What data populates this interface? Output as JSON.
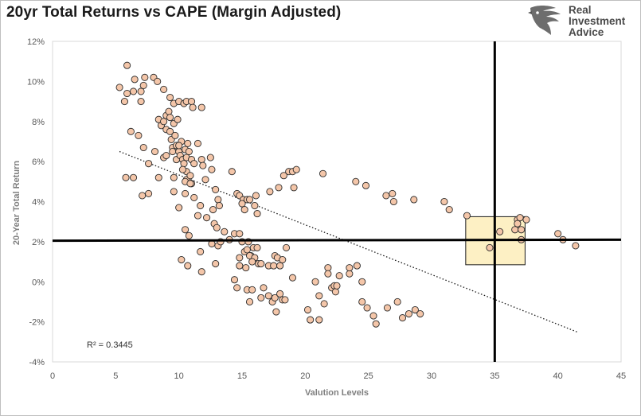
{
  "chart_data": {
    "type": "scatter",
    "title": "20yr Total Returns vs CAPE (Margin Adjusted)",
    "xlabel": "Valution Levels",
    "ylabel": "20-Year Total Return",
    "xlim": [
      0,
      45
    ],
    "ylim": [
      -4,
      12
    ],
    "x_ticks": [
      "0",
      "5",
      "10",
      "15",
      "20",
      "25",
      "30",
      "35",
      "40",
      "45"
    ],
    "y_ticks": [
      "-4%",
      "-2%",
      "0%",
      "2%",
      "4%",
      "6%",
      "8%",
      "10%",
      "12%"
    ],
    "grid": false,
    "r_squared_label": "R² = 0.3445",
    "trendline": {
      "style": "dotted",
      "x": [
        5.3,
        41.5
      ],
      "y": [
        6.5,
        -2.5
      ]
    },
    "reference_lines": {
      "vertical_x": 35,
      "horizontal_y": [
        2.05,
        2.1
      ]
    },
    "highlight_box": {
      "x": [
        32.7,
        37.4
      ],
      "y": [
        0.85,
        3.25
      ],
      "fill": "#fdf0c4"
    },
    "marker_color": "#f4c6a9",
    "points": [
      [
        5.3,
        9.7
      ],
      [
        5.9,
        10.8
      ],
      [
        5.9,
        9.4
      ],
      [
        5.7,
        9.0
      ],
      [
        6.5,
        10.1
      ],
      [
        6.4,
        9.5
      ],
      [
        7.0,
        9.5
      ],
      [
        7.0,
        9.0
      ],
      [
        7.2,
        9.8
      ],
      [
        7.3,
        10.2
      ],
      [
        8.0,
        10.2
      ],
      [
        8.3,
        10.0
      ],
      [
        8.8,
        9.6
      ],
      [
        9.3,
        9.2
      ],
      [
        9.6,
        8.9
      ],
      [
        10.0,
        9.0
      ],
      [
        10.4,
        8.9
      ],
      [
        10.6,
        9.0
      ],
      [
        11.0,
        9.0
      ],
      [
        11.1,
        8.7
      ],
      [
        11.8,
        8.7
      ],
      [
        6.2,
        7.5
      ],
      [
        6.8,
        7.3
      ],
      [
        7.2,
        6.7
      ],
      [
        7.6,
        5.9
      ],
      [
        8.1,
        6.5
      ],
      [
        8.4,
        8.1
      ],
      [
        8.6,
        7.8
      ],
      [
        8.8,
        8.0
      ],
      [
        8.8,
        6.2
      ],
      [
        9.0,
        8.3
      ],
      [
        9.0,
        7.6
      ],
      [
        9.2,
        8.5
      ],
      [
        9.3,
        8.2
      ],
      [
        9.3,
        7.5
      ],
      [
        9.4,
        7.1
      ],
      [
        9.5,
        6.7
      ],
      [
        9.5,
        6.5
      ],
      [
        9.6,
        7.9
      ],
      [
        9.7,
        7.3
      ],
      [
        9.8,
        6.8
      ],
      [
        9.8,
        6.1
      ],
      [
        9.9,
        8.1
      ],
      [
        10.0,
        6.5
      ],
      [
        10.1,
        6.3
      ],
      [
        10.2,
        7.0
      ],
      [
        10.3,
        6.1
      ],
      [
        10.4,
        5.9
      ],
      [
        10.5,
        6.6
      ],
      [
        10.6,
        6.2
      ],
      [
        10.6,
        5.5
      ],
      [
        10.7,
        6.9
      ],
      [
        10.8,
        6.5
      ],
      [
        11.0,
        6.1
      ],
      [
        11.2,
        5.9
      ],
      [
        11.5,
        6.9
      ],
      [
        11.8,
        6.1
      ],
      [
        11.9,
        5.8
      ],
      [
        12.5,
        6.2
      ],
      [
        9.0,
        6.3
      ],
      [
        10.0,
        6.8
      ],
      [
        10.3,
        5.6
      ],
      [
        10.6,
        5.1
      ],
      [
        10.9,
        5.3
      ],
      [
        11.0,
        4.9
      ],
      [
        10.5,
        4.4
      ],
      [
        10.5,
        5.0
      ],
      [
        9.6,
        5.2
      ],
      [
        8.4,
        5.2
      ],
      [
        7.6,
        4.4
      ],
      [
        7.1,
        4.3
      ],
      [
        6.4,
        5.2
      ],
      [
        5.8,
        5.2
      ],
      [
        9.6,
        4.5
      ],
      [
        10.0,
        3.7
      ],
      [
        10.9,
        4.9
      ],
      [
        11.2,
        4.2
      ],
      [
        11.5,
        3.3
      ],
      [
        11.7,
        3.8
      ],
      [
        12.2,
        3.2
      ],
      [
        12.1,
        5.1
      ],
      [
        12.6,
        5.6
      ],
      [
        12.9,
        4.6
      ],
      [
        13.1,
        4.1
      ],
      [
        12.7,
        3.6
      ],
      [
        13.2,
        3.8
      ],
      [
        12.8,
        2.9
      ],
      [
        13.0,
        2.7
      ],
      [
        12.6,
        1.9
      ],
      [
        13.1,
        1.8
      ],
      [
        13.6,
        2.5
      ],
      [
        14.0,
        2.1
      ],
      [
        13.3,
        2.0
      ],
      [
        10.5,
        2.6
      ],
      [
        10.8,
        2.3
      ],
      [
        11.7,
        1.5
      ],
      [
        10.2,
        1.1
      ],
      [
        10.7,
        0.8
      ],
      [
        11.8,
        0.5
      ],
      [
        12.9,
        0.9
      ],
      [
        14.2,
        5.5
      ],
      [
        14.6,
        4.4
      ],
      [
        14.8,
        4.3
      ],
      [
        15.1,
        4.1
      ],
      [
        15.4,
        4.1
      ],
      [
        15.0,
        3.9
      ],
      [
        15.2,
        3.6
      ],
      [
        15.6,
        4.1
      ],
      [
        16.0,
        3.8
      ],
      [
        16.1,
        4.3
      ],
      [
        16.2,
        3.4
      ],
      [
        17.2,
        4.5
      ],
      [
        17.9,
        4.7
      ],
      [
        18.3,
        5.3
      ],
      [
        18.7,
        5.5
      ],
      [
        19.0,
        5.5
      ],
      [
        19.1,
        4.7
      ],
      [
        19.3,
        5.6
      ],
      [
        14.4,
        2.4
      ],
      [
        14.8,
        2.4
      ],
      [
        15.0,
        2.0
      ],
      [
        15.5,
        2.0
      ],
      [
        15.9,
        1.7
      ],
      [
        15.7,
        1.3
      ],
      [
        15.6,
        1.3
      ],
      [
        16.0,
        1.2
      ],
      [
        14.8,
        1.2
      ],
      [
        15.2,
        1.5
      ],
      [
        15.4,
        1.6
      ],
      [
        16.2,
        1.7
      ],
      [
        16.3,
        0.9
      ],
      [
        15.8,
        1.0
      ],
      [
        17.1,
        0.8
      ],
      [
        16.5,
        0.9
      ],
      [
        17.5,
        0.8
      ],
      [
        17.6,
        1.3
      ],
      [
        17.8,
        1.2
      ],
      [
        18.0,
        0.8
      ],
      [
        18.2,
        1.1
      ],
      [
        18.5,
        1.7
      ],
      [
        14.8,
        0.8
      ],
      [
        15.3,
        0.7
      ],
      [
        14.4,
        0.1
      ],
      [
        14.6,
        -0.3
      ],
      [
        15.4,
        -0.4
      ],
      [
        15.8,
        -0.4
      ],
      [
        15.6,
        -1.0
      ],
      [
        16.5,
        -0.8
      ],
      [
        16.7,
        -0.3
      ],
      [
        17.1,
        -0.7
      ],
      [
        17.4,
        -1.0
      ],
      [
        17.6,
        -0.8
      ],
      [
        17.7,
        -1.5
      ],
      [
        18.0,
        -0.6
      ],
      [
        18.2,
        -0.9
      ],
      [
        18.4,
        -0.9
      ],
      [
        19.0,
        0.2
      ],
      [
        20.2,
        -1.4
      ],
      [
        20.4,
        -1.9
      ],
      [
        20.8,
        0.0
      ],
      [
        21.1,
        -0.7
      ],
      [
        21.1,
        -1.9
      ],
      [
        21.5,
        -1.1
      ],
      [
        21.8,
        0.7
      ],
      [
        21.8,
        0.4
      ],
      [
        22.1,
        -0.3
      ],
      [
        22.3,
        -0.2
      ],
      [
        22.4,
        -0.5
      ],
      [
        22.5,
        -0.2
      ],
      [
        22.7,
        0.3
      ],
      [
        23.5,
        0.4
      ],
      [
        23.5,
        0.7
      ],
      [
        24.1,
        0.8
      ],
      [
        24.5,
        0.0
      ],
      [
        24.5,
        -1.0
      ],
      [
        24.9,
        -1.3
      ],
      [
        25.4,
        -1.7
      ],
      [
        25.6,
        -2.1
      ],
      [
        26.5,
        -1.3
      ],
      [
        27.3,
        -1.0
      ],
      [
        27.7,
        -1.8
      ],
      [
        28.2,
        -1.6
      ],
      [
        28.7,
        -1.4
      ],
      [
        29.1,
        -1.6
      ],
      [
        21.4,
        5.4
      ],
      [
        24.0,
        5.0
      ],
      [
        24.8,
        4.8
      ],
      [
        26.4,
        4.3
      ],
      [
        26.9,
        4.4
      ],
      [
        27.0,
        4.0
      ],
      [
        28.6,
        4.1
      ],
      [
        31.0,
        4.0
      ],
      [
        31.4,
        3.6
      ],
      [
        32.8,
        3.3
      ],
      [
        35.4,
        2.5
      ],
      [
        34.6,
        1.7
      ],
      [
        36.6,
        2.6
      ],
      [
        36.8,
        3.1
      ],
      [
        37.0,
        3.2
      ],
      [
        37.1,
        2.1
      ],
      [
        37.1,
        2.6
      ],
      [
        36.8,
        2.9
      ],
      [
        37.5,
        3.1
      ],
      [
        40.0,
        2.4
      ],
      [
        40.4,
        2.1
      ],
      [
        41.4,
        1.8
      ]
    ]
  }
}
